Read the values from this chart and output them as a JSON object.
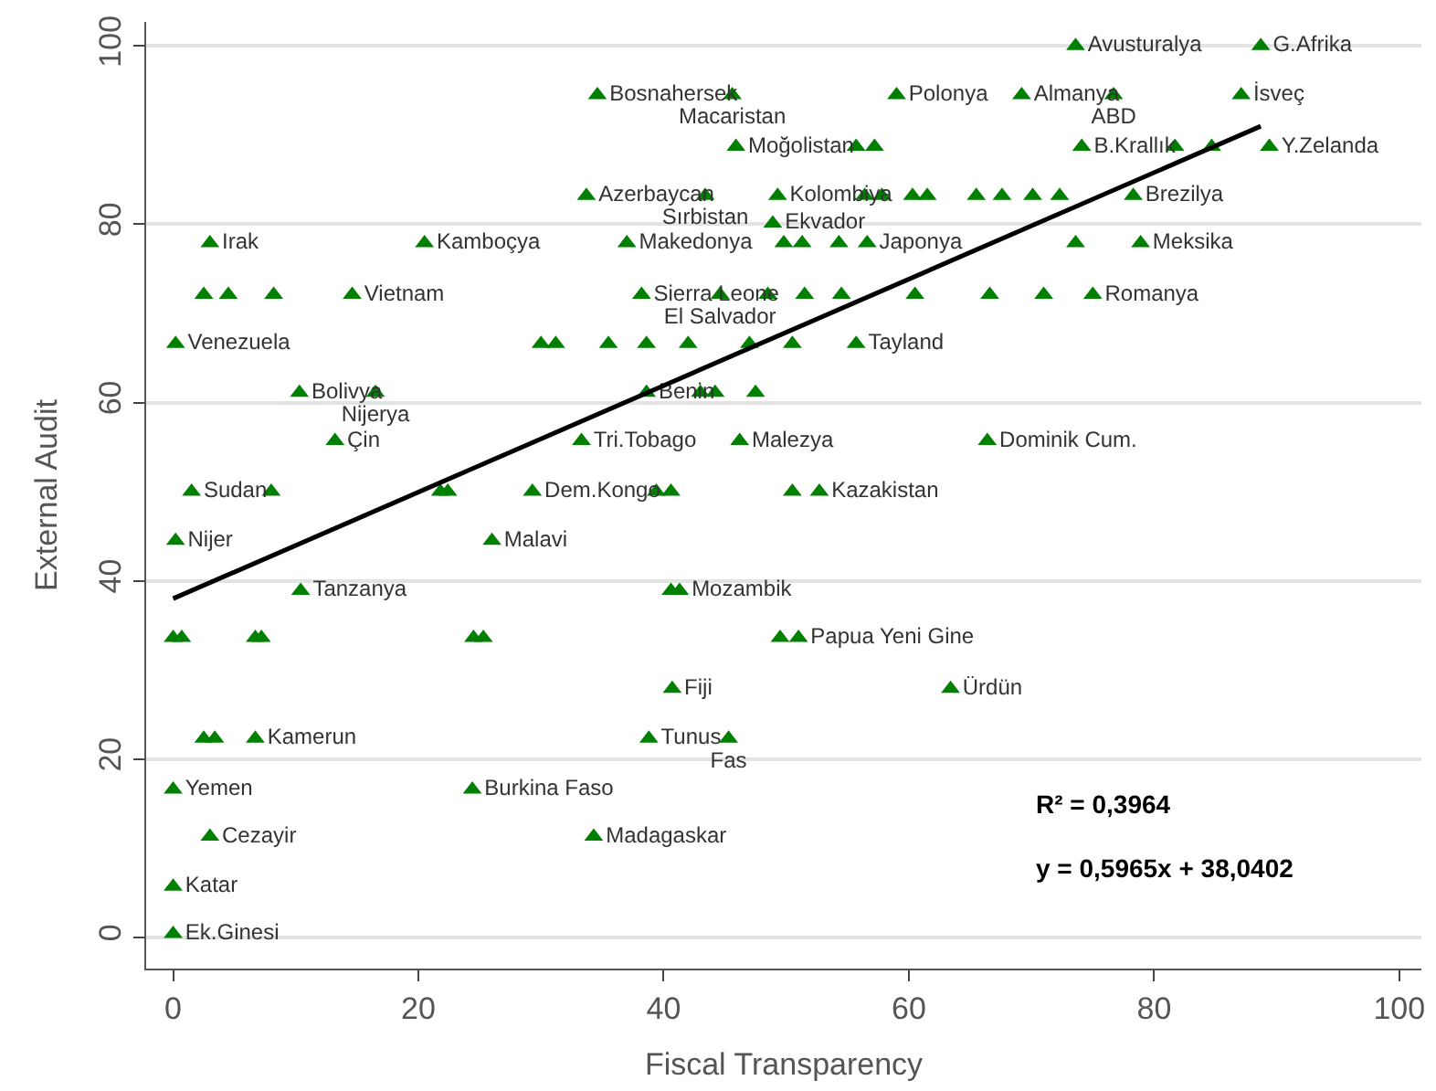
{
  "chart_data": {
    "type": "scatter",
    "xlabel": "Fiscal Transparency",
    "ylabel": "External Audit",
    "xlim": [
      -2.2,
      101.8
    ],
    "ylim": [
      -3.5,
      102.7
    ],
    "xticks": [
      0,
      20,
      40,
      60,
      80,
      100
    ],
    "yticks": [
      0,
      20,
      40,
      60,
      80,
      100
    ],
    "grid": "y",
    "annotations": [
      "R² = 0,3964",
      "y = 0,5965x + 38,0402"
    ],
    "series": [
      {
        "color": "#008000",
        "marker": "triangle",
        "x": [
          73.6,
          88.7,
          34.6,
          45.6,
          59.0,
          69.2,
          76.7,
          87.1,
          45.9,
          55.7,
          57.2,
          74.1,
          81.7,
          84.7,
          89.4,
          33.7,
          43.4,
          49.3,
          56.4,
          57.8,
          60.3,
          61.5,
          65.5,
          67.6,
          70.1,
          72.3,
          78.3,
          48.9,
          3.0,
          20.5,
          37.0,
          49.8,
          51.3,
          54.3,
          56.6,
          73.6,
          78.9,
          2.5,
          4.5,
          8.2,
          14.6,
          38.2,
          44.6,
          48.5,
          51.5,
          54.5,
          60.5,
          66.6,
          71.0,
          75.0,
          0.2,
          30.0,
          31.2,
          35.5,
          38.6,
          42.0,
          47.0,
          50.5,
          55.7,
          10.3,
          16.5,
          38.6,
          43.0,
          44.2,
          47.5,
          13.2,
          33.3,
          46.2,
          66.4,
          1.5,
          8.0,
          21.8,
          22.4,
          29.3,
          39.4,
          40.6,
          50.5,
          52.7,
          0.2,
          26.0,
          10.4,
          40.6,
          41.3,
          0.0,
          0.7,
          6.7,
          7.2,
          24.5,
          25.3,
          49.5,
          51.0,
          40.7,
          63.4,
          2.5,
          3.4,
          6.7,
          38.8,
          45.3,
          0.0,
          24.4,
          3.0,
          34.3,
          0.0,
          0.0
        ],
        "values": [
          100,
          100,
          94.5,
          94.5,
          94.5,
          94.5,
          94.5,
          94.5,
          88.7,
          88.7,
          88.7,
          88.7,
          88.7,
          88.7,
          88.7,
          83.2,
          83.2,
          83.2,
          83.2,
          83.2,
          83.2,
          83.2,
          83.2,
          83.2,
          83.2,
          83.2,
          83.2,
          80.1,
          77.9,
          77.9,
          77.9,
          77.9,
          77.9,
          77.9,
          77.9,
          77.9,
          77.9,
          72.1,
          72.1,
          72.1,
          72.1,
          72.1,
          72.1,
          72.1,
          72.1,
          72.1,
          72.1,
          72.1,
          72.1,
          72.1,
          66.6,
          66.6,
          66.6,
          66.6,
          66.6,
          66.6,
          66.6,
          66.6,
          66.6,
          61.1,
          61.1,
          61.1,
          61.1,
          61.1,
          61.1,
          55.7,
          55.7,
          55.7,
          55.7,
          50.0,
          50.0,
          50.0,
          50.0,
          50.0,
          50.0,
          50.0,
          50.0,
          50.0,
          44.5,
          44.5,
          38.9,
          38.9,
          38.9,
          33.6,
          33.6,
          33.6,
          33.6,
          33.6,
          33.6,
          33.6,
          33.6,
          27.9,
          27.9,
          22.3,
          22.3,
          22.3,
          22.3,
          22.3,
          16.6,
          16.6,
          11.3,
          11.3,
          5.7,
          0.4
        ],
        "value_labels": [
          "Avusturalya",
          "G.Afrika",
          "Bosnahersek",
          "Macaristan",
          "Polonya",
          "Almanya",
          "ABD",
          "İsveç",
          "Moğolistan",
          null,
          null,
          "B.Krallık",
          null,
          null,
          "Y.Zelanda",
          "Azerbaycan",
          "Sırbistan",
          "Kolombiya",
          null,
          null,
          null,
          null,
          null,
          null,
          null,
          null,
          "Brezilya",
          "Ekvador",
          "Irak",
          "Kamboçya",
          "Makedonya",
          null,
          null,
          null,
          "Japonya",
          null,
          "Meksika",
          null,
          null,
          null,
          "Vietnam",
          "Sierra Leone",
          "El Salvador",
          null,
          null,
          null,
          null,
          null,
          null,
          "Romanya",
          "Venezuela",
          null,
          null,
          null,
          null,
          null,
          null,
          null,
          "Tayland",
          "Bolivya",
          "Nijerya",
          "Benin",
          null,
          null,
          null,
          "Çin",
          "Tri.Tobago",
          "Malezya",
          "Dominik Cum.",
          "Sudan",
          null,
          null,
          null,
          "Dem.Kongo",
          null,
          null,
          null,
          "Kazakistan",
          "Nijer",
          "Malavi",
          "Tanzanya",
          null,
          "Mozambik",
          null,
          null,
          null,
          null,
          null,
          null,
          null,
          "Papua Yeni Gine",
          "Fiji",
          "Ürdün",
          null,
          null,
          "Kamerun",
          "Tunus",
          "Fas",
          "Yemen",
          "Burkina Faso",
          "Cezayir",
          "Madagaskar",
          "Katar",
          "Ek.Ginesi"
        ]
      },
      {
        "type": "line",
        "color": "#000000",
        "x": [
          0,
          88.7
        ],
        "values": [
          38.0,
          91.0
        ]
      }
    ]
  }
}
